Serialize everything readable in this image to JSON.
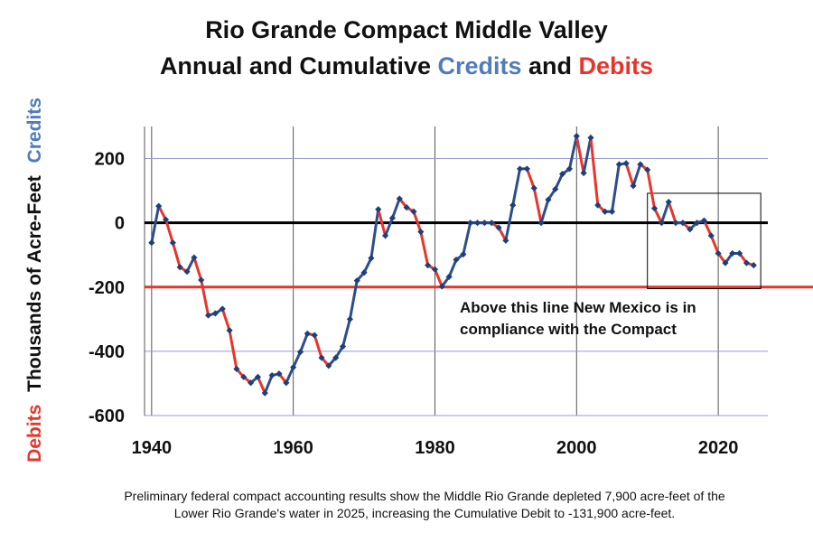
{
  "title": {
    "line1": "Rio Grande Compact Middle Valley",
    "line2_prefix": "Annual and Cumulative ",
    "line2_credits": "Credits",
    "line2_and": " and ",
    "line2_debits": "Debits"
  },
  "y_axis_label": {
    "debits": "Debits",
    "thousands": "Thousands of  Acre-Feet",
    "credits": "Credits"
  },
  "annotation": {
    "line1": "Above this line New Mexico is in",
    "line2": "compliance with the Compact"
  },
  "caption": "Preliminary federal compact accounting results show the Middle Rio Grande depleted 7,900 acre-feet of the Lower Rio Grande's water in 2025, increasing the Cumulative Debit to -131,900 acre-feet.",
  "colors": {
    "credit": "#2c4f8c",
    "debit": "#e8352a",
    "marker": "#1f3f7a",
    "grid": "#9a9ad6",
    "zero_line": "#000000",
    "compliance_line": "#e8352a"
  },
  "chart_data": {
    "type": "line",
    "title": "Rio Grande Compact Middle Valley Annual and Cumulative Credits and Debits",
    "ylabel": "Debits   Thousands of  Acre-Feet   Credits",
    "xlabel": "",
    "xlim": [
      1939,
      2027
    ],
    "ylim": [
      -600,
      300
    ],
    "x_ticks": [
      1940,
      1960,
      1980,
      2000,
      2020
    ],
    "y_ticks": [
      200,
      0,
      -200,
      -400,
      -600
    ],
    "y_tick_labels": [
      "200",
      "0",
      "-200",
      "-400",
      "-600"
    ],
    "grid": true,
    "reference_lines": [
      {
        "y": 0,
        "color": "#000000"
      },
      {
        "y": -200,
        "color": "#e8352a",
        "label": "Above this line New Mexico is in compliance with the Compact"
      }
    ],
    "highlight_box": {
      "x": [
        2010,
        2026
      ],
      "y": [
        -205,
        92
      ]
    },
    "series": [
      {
        "x": [
          1940,
          1941,
          1942,
          1943,
          1944,
          1945,
          1946,
          1947,
          1948,
          1949,
          1950,
          1951,
          1952,
          1953,
          1954,
          1955,
          1956,
          1957,
          1958,
          1959,
          1960,
          1961,
          1962,
          1963,
          1964,
          1965,
          1966,
          1967,
          1968,
          1969,
          1970,
          1971,
          1972,
          1973,
          1974,
          1975,
          1976,
          1977,
          1978,
          1979,
          1980,
          1981,
          1982,
          1983,
          1984,
          1985,
          1986,
          1987,
          1988,
          1989,
          1990,
          1991,
          1992,
          1993,
          1994,
          1995,
          1996,
          1997,
          1998,
          1999,
          2000,
          2001,
          2002,
          2003,
          2004,
          2005,
          2006,
          2007,
          2008,
          2009,
          2010,
          2011,
          2012,
          2013,
          2014,
          2015,
          2016,
          2017,
          2018,
          2019,
          2020,
          2021,
          2022,
          2023,
          2024,
          2025
        ],
        "values": [
          -62,
          52,
          10,
          -62,
          -138,
          -152,
          -108,
          -178,
          -288,
          -282,
          -268,
          -335,
          -455,
          -480,
          -498,
          -480,
          -530,
          -475,
          -470,
          -498,
          -450,
          -402,
          -345,
          -350,
          -420,
          -445,
          -420,
          -385,
          -300,
          -180,
          -155,
          -110,
          42,
          -40,
          15,
          75,
          48,
          35,
          -28,
          -132,
          -145,
          -198,
          -168,
          -115,
          -98,
          0,
          0,
          0,
          0,
          -15,
          -55,
          55,
          168,
          168,
          108,
          0,
          72,
          105,
          152,
          168,
          270,
          155,
          265,
          55,
          35,
          35,
          182,
          185,
          115,
          182,
          165,
          45,
          0,
          65,
          0,
          0,
          -20,
          0,
          7,
          -40,
          -95,
          -125,
          -95,
          -95,
          -125,
          -132
        ]
      }
    ]
  }
}
